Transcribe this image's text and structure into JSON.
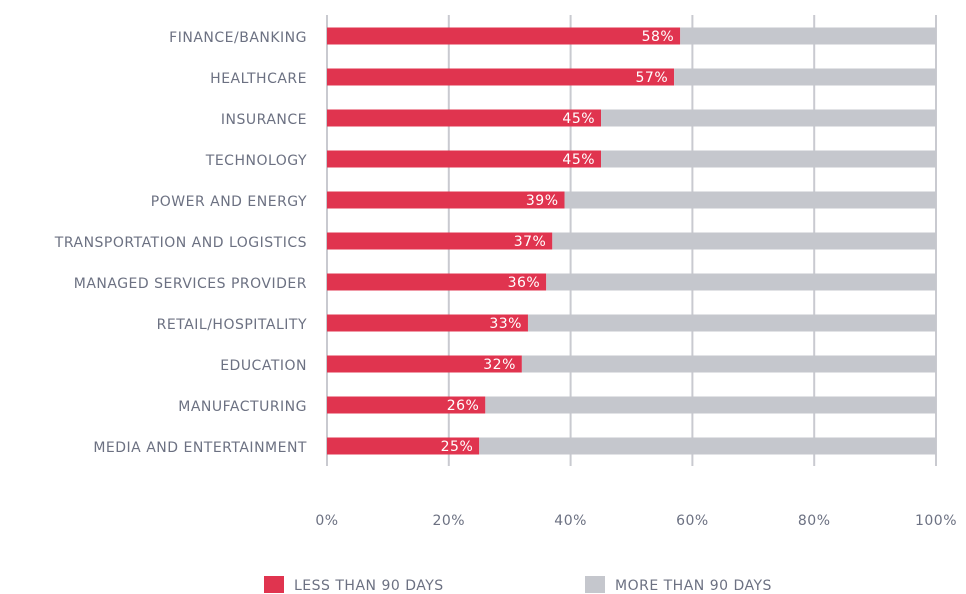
{
  "chart_data": {
    "type": "stacked_barh",
    "categories": [
      "FINANCE/BANKING",
      "HEALTHCARE",
      "INSURANCE",
      "TECHNOLOGY",
      "POWER AND ENERGY",
      "TRANSPORTATION AND LOGISTICS",
      "MANAGED SERVICES PROVIDER",
      "RETAIL/HOSPITALITY",
      "EDUCATION",
      "MANUFACTURING",
      "MEDIA AND ENTERTAINMENT"
    ],
    "series": [
      {
        "name": "LESS THAN 90 DAYS",
        "color": "#e0344f",
        "values": [
          58,
          57,
          45,
          45,
          39,
          37,
          36,
          33,
          32,
          26,
          25
        ],
        "value_labels": [
          "58%",
          "57%",
          "45%",
          "45%",
          "39%",
          "37%",
          "36%",
          "33%",
          "32%",
          "26%",
          "25%"
        ]
      },
      {
        "name": "MORE THAN 90 DAYS",
        "color": "#c5c7cd",
        "values": [
          42,
          43,
          55,
          55,
          61,
          63,
          64,
          67,
          68,
          74,
          75
        ]
      }
    ],
    "xlim": [
      0,
      100
    ],
    "xticks": [
      {
        "value": 0,
        "label": "0%"
      },
      {
        "value": 20,
        "label": "20%"
      },
      {
        "value": 40,
        "label": "40%"
      },
      {
        "value": 60,
        "label": "60%"
      },
      {
        "value": 80,
        "label": "80%"
      },
      {
        "value": 100,
        "label": "100%"
      }
    ],
    "grid": true,
    "legend": "bottom"
  }
}
